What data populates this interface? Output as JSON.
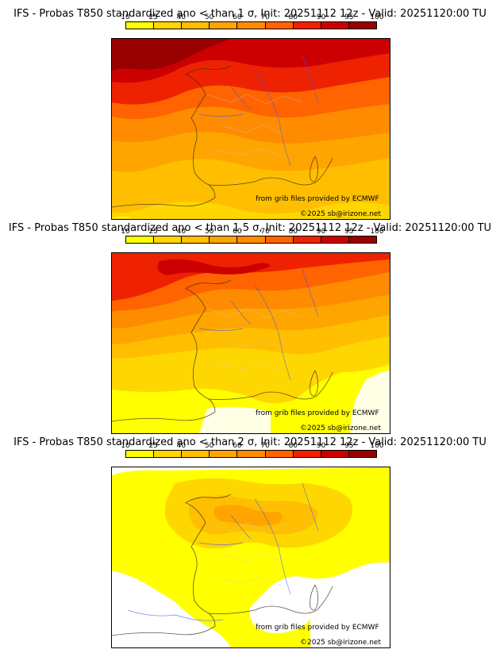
{
  "colorbar": {
    "ticks": [
      "10",
      "25",
      "40",
      "50",
      "60",
      "70",
      "80",
      "90",
      "95",
      "100"
    ],
    "colors": [
      "#ffff00",
      "#ffd700",
      "#ffbf00",
      "#ffa500",
      "#ff8c00",
      "#ff6400",
      "#ee2200",
      "#cc0000",
      "#990000"
    ]
  },
  "panels": [
    {
      "title": "IFS - Probas T850  standardized ano < than 1 σ, Init: 20251112 12z - Valid: 20251120:00 TU",
      "credit_grib": "from grib files provided by ECMWF",
      "credit_site": "©2025 sb@irizone.net",
      "sigma": 1
    },
    {
      "title": "IFS - Probas T850  standardized ano < than 1.5 σ, Init: 20251112 12z - Valid: 20251120:00 TU",
      "credit_grib": "from grib files provided by ECMWF",
      "credit_site": "©2025 sb@irizone.net",
      "sigma": 1.5
    },
    {
      "title": "IFS - Probas T850  standardized ano < than 2 σ, Init: 20251112 12z - Valid: 20251120:00 TU",
      "credit_grib": "from grib files provided by ECMWF",
      "credit_site": "©2025 sb@irizone.net",
      "sigma": 2
    }
  ]
}
